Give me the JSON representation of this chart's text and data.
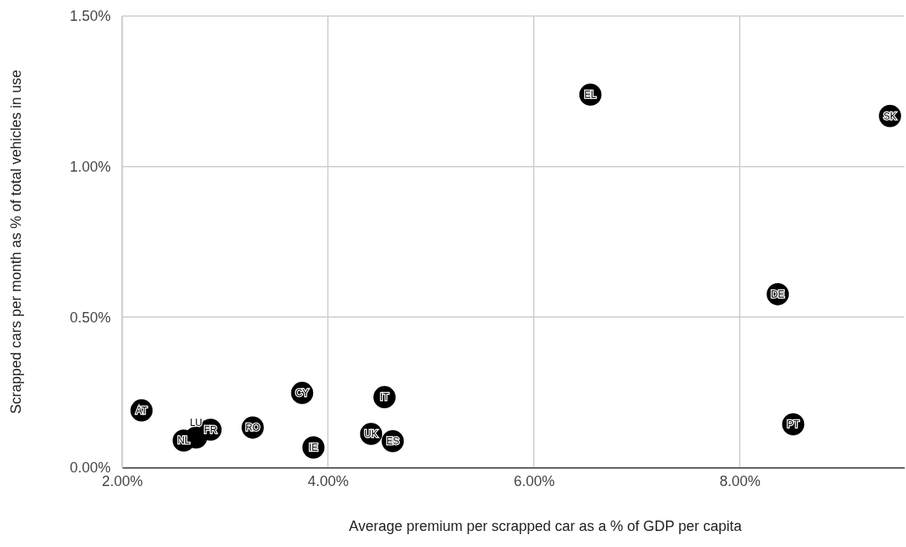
{
  "chart_data": {
    "type": "scatter",
    "xlabel": "Average premium per scrapped car as a % of GDP per capita",
    "ylabel": "Scrapped cars per month as % of total vehicles in use",
    "x": [
      2.19,
      2.6,
      2.72,
      2.86,
      3.27,
      3.75,
      3.86,
      4.42,
      4.55,
      4.63,
      6.55,
      8.37,
      8.52,
      9.46
    ],
    "series": [
      {
        "color": "#000000",
        "values": [
          0.19,
          0.09,
          0.1,
          0.126,
          0.133,
          0.248,
          0.067,
          0.112,
          0.234,
          0.088,
          1.239,
          0.576,
          0.144,
          1.168
        ],
        "value_labels": [
          "AT",
          "NL",
          "LU",
          "FR",
          "RO",
          "CY",
          "IE",
          "UK",
          "IT",
          "ES",
          "EL",
          "DE",
          "PT",
          "SK"
        ]
      }
    ],
    "xlim": [
      2,
      9.6
    ],
    "xticks": [
      {
        "value": 2,
        "label": "2.00%"
      },
      {
        "value": 4,
        "label": "4.00%"
      },
      {
        "value": 6,
        "label": "6.00%"
      },
      {
        "value": 8,
        "label": "8.00%"
      }
    ],
    "ylim": [
      0,
      1.5
    ],
    "yticks": [
      {
        "value": 0,
        "label": "0.00%"
      },
      {
        "value": 0.5,
        "label": "0.50%"
      },
      {
        "value": 1,
        "label": "1.00%"
      },
      {
        "value": 1.5,
        "label": "1.50%"
      }
    ],
    "grid": true,
    "marker": "circle"
  }
}
